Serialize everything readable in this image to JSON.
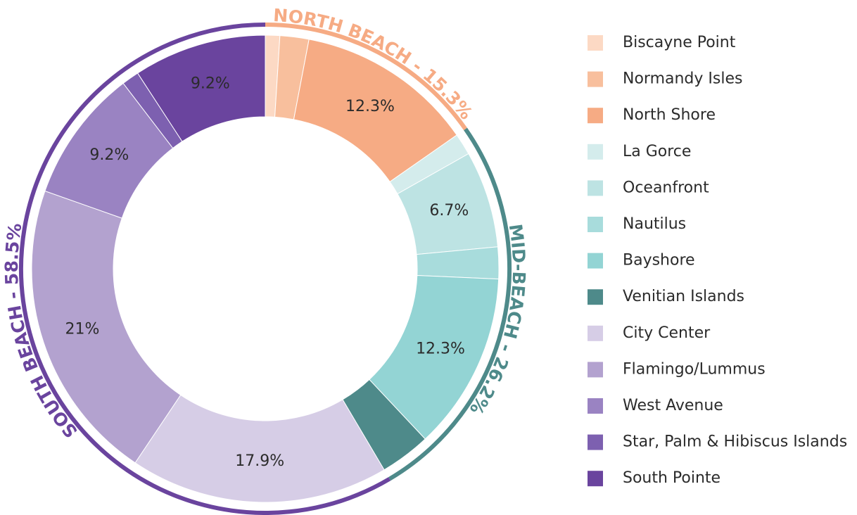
{
  "chart_data": {
    "type": "donut",
    "categories": [
      "Biscayne Point",
      "Normandy Isles",
      "North Shore",
      "La Gorce",
      "Oceanfront",
      "Nautilus",
      "Bayshore",
      "Venitian Islands",
      "City Center",
      "Flamingo/Lummus",
      "West Avenue",
      "Star, Palm & Hibiscus Islands",
      "South Pointe"
    ],
    "values": [
      1.0,
      2.0,
      12.3,
      1.5,
      6.7,
      2.2,
      12.3,
      3.5,
      17.9,
      21,
      9.2,
      1.2,
      9.2
    ],
    "value_labels": [
      null,
      null,
      "12.3%",
      null,
      "6.7%",
      null,
      "12.3%",
      null,
      "17.9%",
      "21%",
      "9.2%",
      null,
      "9.2%"
    ],
    "colors": [
      "#fcd9c4",
      "#f8bf9d",
      "#f6ab84",
      "#d4ecec",
      "#bde3e3",
      "#a8dcdc",
      "#93d4d4",
      "#4e8a8a",
      "#d6cde6",
      "#b3a2cf",
      "#9a83c2",
      "#7d60b0",
      "#6a449e"
    ],
    "groups": [
      {
        "label": "NORTH BEACH - 15.3%",
        "value": 15.3,
        "color": "#f6ab84"
      },
      {
        "label": "MID-BEACH - 26.2%",
        "value": 26.2,
        "color": "#4e8a8a"
      },
      {
        "label": "SOUTH BEACH - 58.5%",
        "value": 58.5,
        "color": "#6a449e"
      }
    ],
    "legend": "right"
  }
}
